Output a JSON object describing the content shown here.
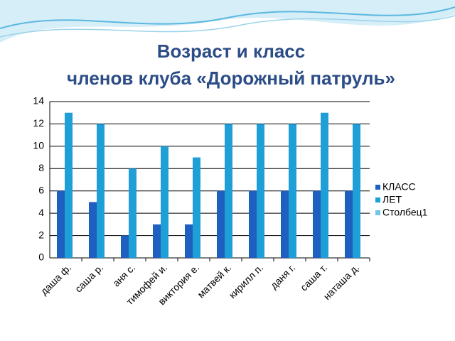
{
  "chart_data": {
    "type": "bar",
    "title": [
      "Возраст и класс",
      "членов клуба «Дорожный патруль»"
    ],
    "categories": [
      "даша ф.",
      "саша р.",
      "аня с.",
      "тимофей и.",
      "виктория е.",
      "матвей к.",
      "кирилл п.",
      "даня г.",
      "саша т.",
      "наташа д."
    ],
    "series": [
      {
        "name": "КЛАСС",
        "color": "#1f5fbf",
        "values": [
          6,
          5,
          2,
          3,
          3,
          6,
          6,
          6,
          6,
          6
        ]
      },
      {
        "name": "ЛЕТ",
        "color": "#1e9fd8",
        "values": [
          13,
          12,
          8,
          10,
          9,
          12,
          12,
          12,
          13,
          12
        ]
      },
      {
        "name": "Столбец1",
        "color": "#6fc8e8",
        "values": [
          null,
          null,
          null,
          null,
          null,
          null,
          null,
          null,
          null,
          null
        ]
      }
    ],
    "ylim": [
      0,
      14
    ],
    "yticks": [
      0,
      2,
      4,
      6,
      8,
      10,
      12,
      14
    ],
    "grid": true,
    "legend": "right"
  }
}
